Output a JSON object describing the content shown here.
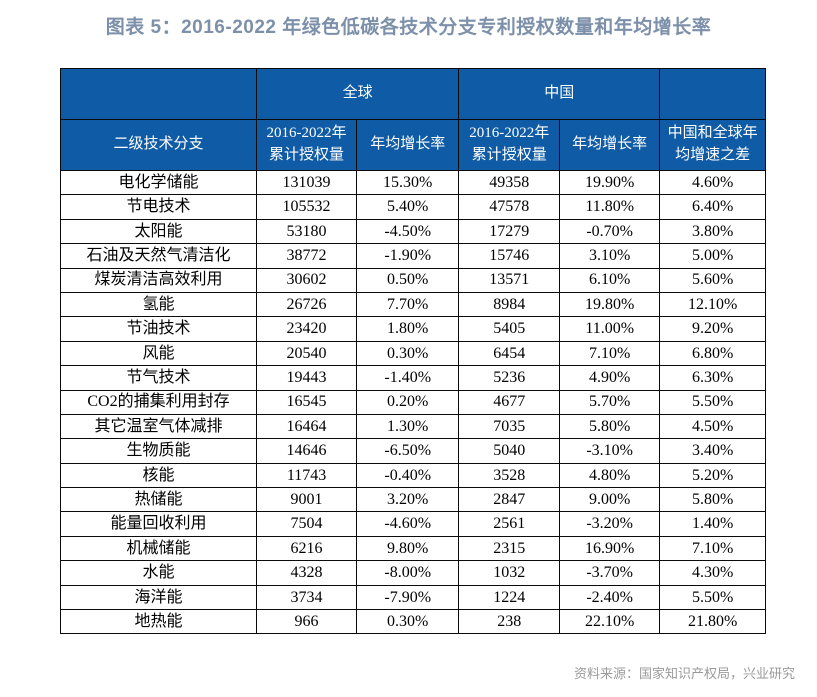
{
  "page": {
    "title": "图表 5：2016-2022 年绿色低碳各技术分支专利授权数量和年均增长率",
    "source": "资料来源：国家知识产权局，兴业研究"
  },
  "colors": {
    "header_background": "#0f5ba5",
    "header_text": "#ffffff",
    "title_text": "#7d90aa",
    "source_text": "#9a9a9a",
    "table_border": "#0a0a0a",
    "body_text": "#000000"
  },
  "chart_data": {
    "type": "table",
    "column_groups": [
      {
        "label": "",
        "span": 1
      },
      {
        "label": "全球",
        "span": 2
      },
      {
        "label": "中国",
        "span": 2
      },
      {
        "label": "",
        "span": 1
      }
    ],
    "columns": [
      "二级技术分支",
      "2016-2022年\n累计授权量",
      "年均增长率",
      "2016-2022年\n累计授权量",
      "年均增长率",
      "中国和全球年\n均增速之差"
    ],
    "column_widths_pct": [
      27.8,
      14.2,
      14.5,
      14.3,
      14.2,
      15.0
    ],
    "rows": [
      [
        "电化学储能",
        "131039",
        "15.30%",
        "49358",
        "19.90%",
        "4.60%"
      ],
      [
        "节电技术",
        "105532",
        "5.40%",
        "47578",
        "11.80%",
        "6.40%"
      ],
      [
        "太阳能",
        "53180",
        "-4.50%",
        "17279",
        "-0.70%",
        "3.80%"
      ],
      [
        "石油及天然气清洁化",
        "38772",
        "-1.90%",
        "15746",
        "3.10%",
        "5.00%"
      ],
      [
        "煤炭清洁高效利用",
        "30602",
        "0.50%",
        "13571",
        "6.10%",
        "5.60%"
      ],
      [
        "氢能",
        "26726",
        "7.70%",
        "8984",
        "19.80%",
        "12.10%"
      ],
      [
        "节油技术",
        "23420",
        "1.80%",
        "5405",
        "11.00%",
        "9.20%"
      ],
      [
        "风能",
        "20540",
        "0.30%",
        "6454",
        "7.10%",
        "6.80%"
      ],
      [
        "节气技术",
        "19443",
        "-1.40%",
        "5236",
        "4.90%",
        "6.30%"
      ],
      [
        "CO2的捕集利用封存",
        "16545",
        "0.20%",
        "4677",
        "5.70%",
        "5.50%"
      ],
      [
        "其它温室气体减排",
        "16464",
        "1.30%",
        "7035",
        "5.80%",
        "4.50%"
      ],
      [
        "生物质能",
        "14646",
        "-6.50%",
        "5040",
        "-3.10%",
        "3.40%"
      ],
      [
        "核能",
        "11743",
        "-0.40%",
        "3528",
        "4.80%",
        "5.20%"
      ],
      [
        "热储能",
        "9001",
        "3.20%",
        "2847",
        "9.00%",
        "5.80%"
      ],
      [
        "能量回收利用",
        "7504",
        "-4.60%",
        "2561",
        "-3.20%",
        "1.40%"
      ],
      [
        "机械储能",
        "6216",
        "9.80%",
        "2315",
        "16.90%",
        "7.10%"
      ],
      [
        "水能",
        "4328",
        "-8.00%",
        "1032",
        "-3.70%",
        "4.30%"
      ],
      [
        "海洋能",
        "3734",
        "-7.90%",
        "1224",
        "-2.40%",
        "5.50%"
      ],
      [
        "地热能",
        "966",
        "0.30%",
        "238",
        "22.10%",
        "21.80%"
      ]
    ]
  }
}
